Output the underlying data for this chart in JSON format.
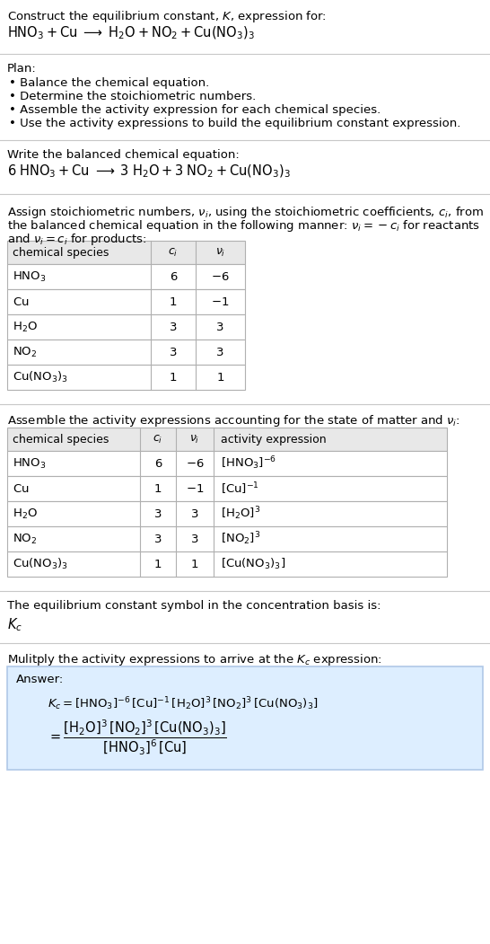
{
  "title_line1": "Construct the equilibrium constant, $K$, expression for:",
  "title_line2": "$\\mathrm{HNO_3 + Cu \\;\\longrightarrow\\; H_2O + NO_2 + Cu(NO_3)_3}$",
  "plan_header": "Plan:",
  "plan_items": [
    "• Balance the chemical equation.",
    "• Determine the stoichiometric numbers.",
    "• Assemble the activity expression for each chemical species.",
    "• Use the activity expressions to build the equilibrium constant expression."
  ],
  "balanced_header": "Write the balanced chemical equation:",
  "balanced_eq": "$\\mathrm{6\\;HNO_3 + Cu \\;\\longrightarrow\\; 3\\;H_2O + 3\\;NO_2 + Cu(NO_3)_3}$",
  "stoich_header_parts": [
    [
      "Assign stoichiometric numbers, ",
      "$\\nu_i$",
      ", using the stoichiometric coefficients, ",
      "$c_i$",
      ", from"
    ],
    [
      "the balanced chemical equation in the following manner: ",
      "$\\nu_i = -c_i$",
      " for reactants"
    ],
    [
      "and ",
      "$\\nu_i = c_i$",
      " for products:"
    ]
  ],
  "table1_col_labels": [
    "chemical species",
    "$c_i$",
    "$\\nu_i$"
  ],
  "table1_rows": [
    [
      "$\\mathrm{HNO_3}$",
      "6",
      "$-6$"
    ],
    [
      "$\\mathrm{Cu}$",
      "1",
      "$-1$"
    ],
    [
      "$\\mathrm{H_2O}$",
      "3",
      "3"
    ],
    [
      "$\\mathrm{NO_2}$",
      "3",
      "3"
    ],
    [
      "$\\mathrm{Cu(NO_3)_3}$",
      "1",
      "1"
    ]
  ],
  "activity_header": "Assemble the activity expressions accounting for the state of matter and $\\nu_i$:",
  "table2_col_labels": [
    "chemical species",
    "$c_i$",
    "$\\nu_i$",
    "activity expression"
  ],
  "table2_rows": [
    [
      "$\\mathrm{HNO_3}$",
      "6",
      "$-6$",
      "$[\\mathrm{HNO_3}]^{-6}$"
    ],
    [
      "$\\mathrm{Cu}$",
      "1",
      "$-1$",
      "$[\\mathrm{Cu}]^{-1}$"
    ],
    [
      "$\\mathrm{H_2O}$",
      "3",
      "3",
      "$[\\mathrm{H_2O}]^{3}$"
    ],
    [
      "$\\mathrm{NO_2}$",
      "3",
      "3",
      "$[\\mathrm{NO_2}]^{3}$"
    ],
    [
      "$\\mathrm{Cu(NO_3)_3}$",
      "1",
      "1",
      "$[\\mathrm{Cu(NO_3)_3}]$"
    ]
  ],
  "kc_header": "The equilibrium constant symbol in the concentration basis is:",
  "kc_symbol": "$K_c$",
  "multiply_header": "Mulitply the activity expressions to arrive at the $K_c$ expression:",
  "answer_label": "Answer:",
  "answer_line1": "$K_c = [\\mathrm{HNO_3}]^{-6}\\,[\\mathrm{Cu}]^{-1}\\,[\\mathrm{H_2O}]^{3}\\,[\\mathrm{NO_2}]^{3}\\,[\\mathrm{Cu(NO_3)_3}]$",
  "answer_eq_lhs": "$= \\dfrac{[\\mathrm{H_2O}]^{3}\\,[\\mathrm{NO_2}]^{3}\\,[\\mathrm{Cu(NO_3)_3}]}{[\\mathrm{HNO_3}]^{6}\\,[\\mathrm{Cu}]}$",
  "bg_color": "#ffffff",
  "answer_bg": "#ddeeff",
  "answer_border": "#b0c8e8",
  "table_header_bg": "#e8e8e8",
  "table_border": "#b0b0b0",
  "divider_color": "#c8c8c8",
  "font_size": 9.5,
  "fig_width": 5.46,
  "fig_height": 10.51,
  "dpi": 100
}
